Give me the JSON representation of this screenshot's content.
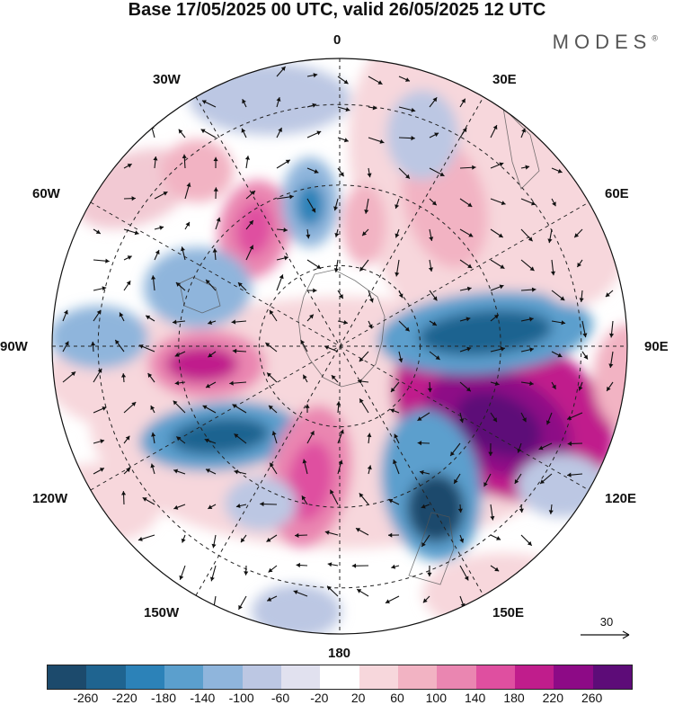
{
  "header": {
    "title": "Base 17/05/2025 00 UTC, valid 26/05/2025 12 UTC",
    "brand": "MODES",
    "brand_mark": "®"
  },
  "map": {
    "projection": "polar-stereographic-south",
    "graticule": "dashed",
    "longitude_labels": {
      "top": "0",
      "top_right": "30E",
      "right_upper": "60E",
      "right": "90E",
      "right_lower": "120E",
      "bottom_right": "150E",
      "bottom": "180",
      "bottom_left": "150W",
      "left_lower": "120W",
      "left": "90W",
      "left_upper": "60W",
      "top_left": "30W"
    },
    "reference_vector": {
      "value": "30",
      "icon": "arrow-right-icon"
    }
  },
  "colorbar": {
    "colors": [
      "#1c4a6c",
      "#1f6490",
      "#2c82b8",
      "#5b9fcd",
      "#8fb5dc",
      "#bcc7e3",
      "#e1e1ef",
      "#ffffff",
      "#f7d7dc",
      "#f2b3c3",
      "#ea86b1",
      "#df4fa0",
      "#c01d8c",
      "#8d0a86",
      "#5d0c78"
    ],
    "ticks": [
      "-260",
      "-220",
      "-180",
      "-140",
      "-100",
      "-60",
      "-20",
      "20",
      "60",
      "100",
      "140",
      "180",
      "220",
      "260"
    ]
  }
}
